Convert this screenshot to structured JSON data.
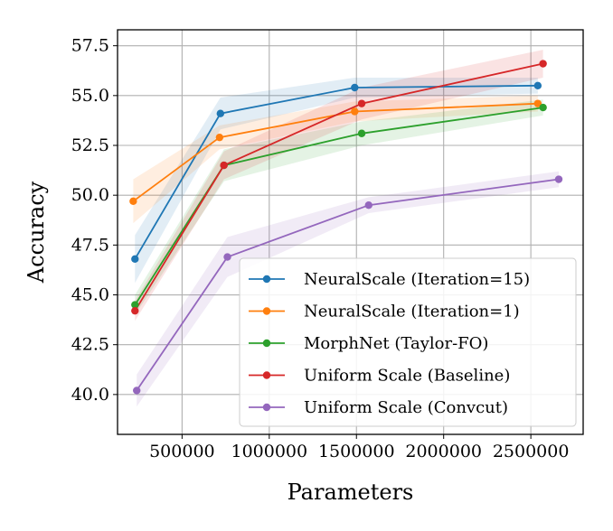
{
  "chart_data": {
    "type": "line",
    "title": "",
    "xlabel": "Parameters",
    "ylabel": "Accuracy",
    "xlim": [
      130000,
      2800000
    ],
    "ylim": [
      38.0,
      58.3
    ],
    "xticks": [
      500000,
      1000000,
      1500000,
      2000000,
      2500000
    ],
    "xtick_labels": [
      "500000",
      "1000000",
      "1500000",
      "2000000",
      "2500000"
    ],
    "yticks": [
      40.0,
      42.5,
      45.0,
      47.5,
      50.0,
      52.5,
      55.0,
      57.5
    ],
    "ytick_labels": [
      "40.0",
      "42.5",
      "45.0",
      "47.5",
      "50.0",
      "52.5",
      "55.0",
      "57.5"
    ],
    "grid": true,
    "legend_position": "bottom-right",
    "series": [
      {
        "name": "NeuralScale (Iteration=15)",
        "color": "#1f77b4",
        "x": [
          230000,
          720000,
          1490000,
          2540000
        ],
        "y": [
          46.8,
          54.1,
          55.4,
          55.5
        ],
        "band": [
          1.2,
          0.8,
          0.5,
          0.4
        ]
      },
      {
        "name": "NeuralScale (Iteration=1)",
        "color": "#ff7f0e",
        "x": [
          220000,
          715000,
          1490000,
          2540000
        ],
        "y": [
          49.7,
          52.9,
          54.2,
          54.6
        ],
        "band": [
          1.1,
          0.6,
          0.5,
          0.4
        ]
      },
      {
        "name": "MorphNet (Taylor-FO)",
        "color": "#2ca02c",
        "x": [
          230000,
          740000,
          1530000,
          2570000
        ],
        "y": [
          44.5,
          51.5,
          53.1,
          54.4
        ],
        "band": [
          0.5,
          0.8,
          0.6,
          0.4
        ]
      },
      {
        "name": "Uniform Scale (Baseline)",
        "color": "#d62728",
        "x": [
          230000,
          740000,
          1530000,
          2570000
        ],
        "y": [
          44.2,
          51.5,
          54.6,
          56.6
        ],
        "band": [
          0.5,
          0.7,
          0.8,
          0.7
        ]
      },
      {
        "name": "Uniform Scale (Convcut)",
        "color": "#9467bd",
        "x": [
          240000,
          760000,
          1570000,
          2660000
        ],
        "y": [
          40.2,
          46.9,
          49.5,
          50.8
        ],
        "band": [
          0.8,
          1.0,
          0.4,
          0.4
        ]
      }
    ]
  }
}
